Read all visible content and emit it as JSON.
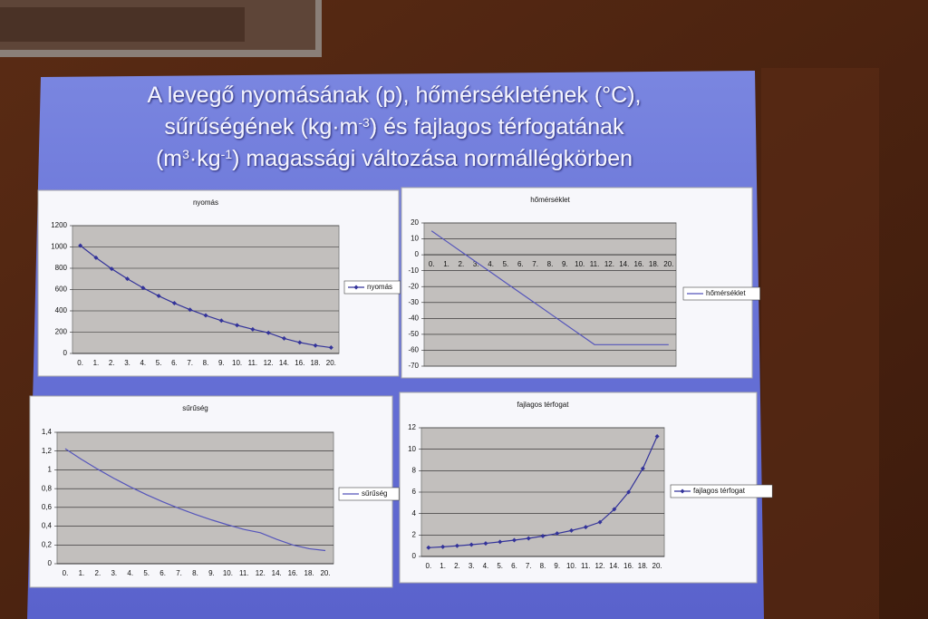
{
  "slide": {
    "title_lines": [
      [
        "A levegő nyomásának (p), hőmérsékletének (°C),"
      ],
      [
        "sűrűségének (kg·m",
        "-3",
        ") és fajlagos térfogatának"
      ],
      [
        "(m",
        "3",
        "·kg",
        "-1",
        ") magassági változása normállégkörben"
      ]
    ]
  },
  "chart_data": [
    {
      "type": "line",
      "title": "nyomás",
      "categories": [
        "0.",
        "1.",
        "2.",
        "3.",
        "4.",
        "5.",
        "6.",
        "7.",
        "8.",
        "9.",
        "10.",
        "11.",
        "12.",
        "14.",
        "16.",
        "18.",
        "20."
      ],
      "series": [
        {
          "name": "nyomás",
          "color": "#33339a",
          "markers": true,
          "values": [
            1013,
            899,
            795,
            701,
            616,
            540,
            472,
            411,
            357,
            308,
            265,
            227,
            194,
            141,
            103,
            75,
            55
          ]
        }
      ],
      "ylim": [
        0,
        1200
      ],
      "yticks": [
        0,
        200,
        400,
        600,
        800,
        1000,
        1200
      ],
      "grid": true,
      "legend": "right"
    },
    {
      "type": "line",
      "title": "hőmérséklet",
      "categories": [
        "0.",
        "1.",
        "2.",
        "3.",
        "4.",
        "5.",
        "6.",
        "7.",
        "8.",
        "9.",
        "10.",
        "11.",
        "12.",
        "14.",
        "16.",
        "18.",
        "20."
      ],
      "series": [
        {
          "name": "hőmérséklet",
          "color": "#5555bb",
          "markers": false,
          "values": [
            15,
            8.5,
            2,
            -4.5,
            -11,
            -17.5,
            -24,
            -30.5,
            -37,
            -43.5,
            -50,
            -56.5,
            -56.5,
            -56.5,
            -56.5,
            -56.5,
            -56.5
          ]
        }
      ],
      "ylim": [
        -70,
        20
      ],
      "yticks": [
        -70,
        -60,
        -50,
        -40,
        -30,
        -20,
        -10,
        0,
        10,
        20
      ],
      "x_axis_crosses": 0,
      "grid": true,
      "legend": "right"
    },
    {
      "type": "line",
      "title": "sűrűség",
      "categories": [
        "0.",
        "1.",
        "2.",
        "3.",
        "4.",
        "5.",
        "6.",
        "7.",
        "8.",
        "9.",
        "10.",
        "11.",
        "12.",
        "14.",
        "16.",
        "18.",
        "20."
      ],
      "series": [
        {
          "name": "sűrűség",
          "color": "#5555bb",
          "markers": false,
          "values": [
            1.225,
            1.112,
            1.007,
            0.909,
            0.819,
            0.736,
            0.66,
            0.59,
            0.526,
            0.467,
            0.414,
            0.365,
            0.33,
            0.26,
            0.2,
            0.16,
            0.14
          ]
        }
      ],
      "ylim": [
        0,
        1.4
      ],
      "yticks": [
        0,
        {
          "value": 0.2,
          "label": "0,2"
        },
        {
          "value": 0.4,
          "label": "0,4"
        },
        {
          "value": 0.6,
          "label": "0,6"
        },
        {
          "value": 0.8,
          "label": "0,8"
        },
        1,
        {
          "value": 1.2,
          "label": "1,2"
        },
        {
          "value": 1.4,
          "label": "1,4"
        }
      ],
      "grid": true,
      "legend": "right"
    },
    {
      "type": "line",
      "title": "fajlagos térfogat",
      "categories": [
        "0.",
        "1.",
        "2.",
        "3.",
        "4.",
        "5.",
        "6.",
        "7.",
        "8.",
        "9.",
        "10.",
        "11.",
        "12.",
        "14.",
        "16.",
        "18.",
        "20."
      ],
      "series": [
        {
          "name": "fajlagos térfogat",
          "color": "#33339a",
          "markers": true,
          "values": [
            0.82,
            0.9,
            0.99,
            1.1,
            1.22,
            1.36,
            1.52,
            1.69,
            1.9,
            2.14,
            2.42,
            2.74,
            3.2,
            4.4,
            6.0,
            8.2,
            11.2
          ]
        }
      ],
      "ylim": [
        0,
        12
      ],
      "yticks": [
        0,
        2,
        4,
        6,
        8,
        10,
        12
      ],
      "grid": true,
      "legend": "right"
    }
  ]
}
